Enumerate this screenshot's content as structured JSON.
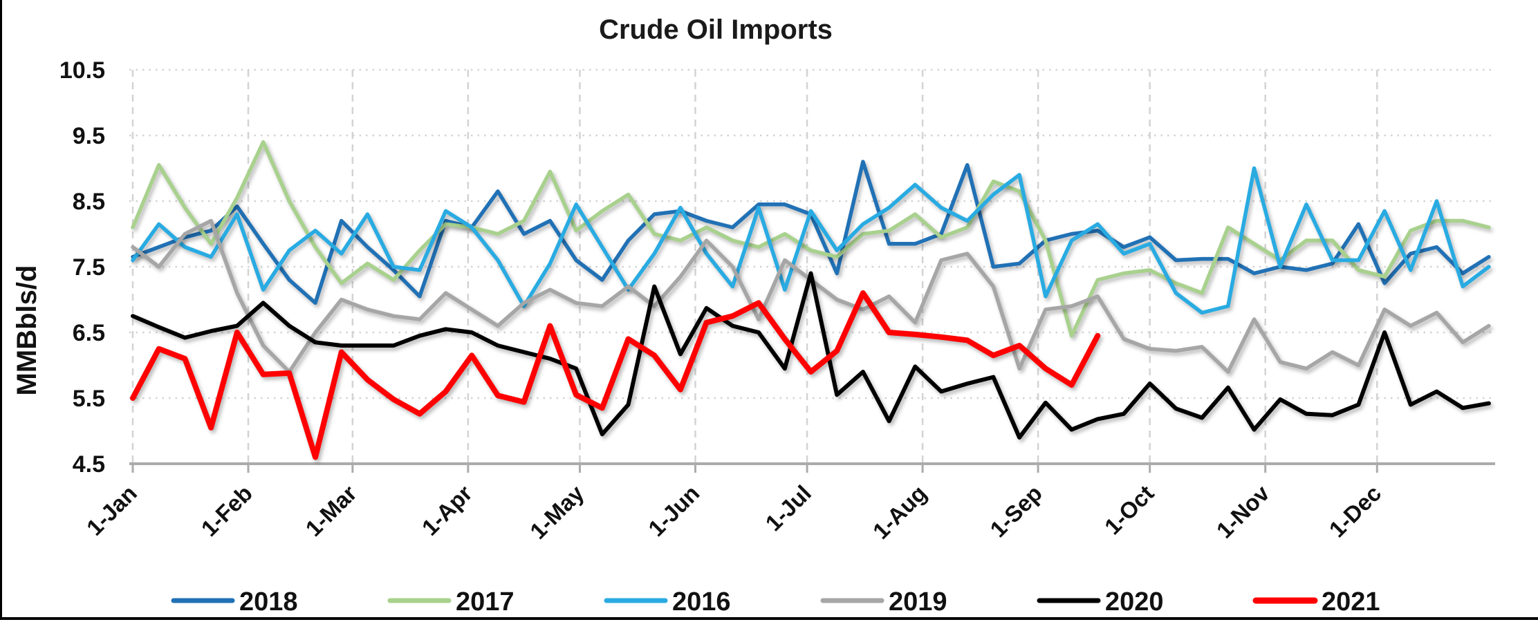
{
  "title": "Crude Oil Imports",
  "y_axis": {
    "label": "MMBbls/d",
    "min": 4.5,
    "max": 10.5,
    "tick_step": 1.0,
    "ticks": [
      "10.5",
      "9.5",
      "8.5",
      "7.5",
      "6.5",
      "5.5",
      "4.5"
    ]
  },
  "x_axis": {
    "tick_labels": [
      "1-Jan",
      "1-Feb",
      "1-Mar",
      "1-Apr",
      "1-May",
      "1-Jun",
      "1-Jul",
      "1-Aug",
      "1-Sep",
      "1-Oct",
      "1-Nov",
      "1-Dec"
    ]
  },
  "legend": [
    {
      "label": "2018",
      "color": "#2171B5"
    },
    {
      "label": "2017",
      "color": "#A9D18E"
    },
    {
      "label": "2016",
      "color": "#29ABE2"
    },
    {
      "label": "2019",
      "color": "#A6A6A6"
    },
    {
      "label": "2020",
      "color": "#000000"
    },
    {
      "label": "2021",
      "color": "#FF0000"
    }
  ],
  "colors": {
    "gridline": "#D3D3D3",
    "axis_line": "#ABABAB",
    "frame_border": "#000000",
    "background": "#FFFFFF"
  },
  "chart_data": {
    "type": "line",
    "x_unit": "weekly (one point per week starting 1-Jan)",
    "ylabel": "MMBbls/d",
    "ylim": [
      4.5,
      10.5
    ],
    "grid": "both, dashed",
    "legend_position": "bottom",
    "title": "Crude Oil Imports",
    "series": [
      {
        "name": "2018",
        "color": "#2171B5",
        "width": 5.5,
        "values": [
          7.65,
          7.8,
          7.95,
          8.05,
          8.42,
          7.85,
          7.3,
          6.95,
          8.2,
          7.8,
          7.45,
          7.05,
          8.2,
          8.1,
          8.65,
          8.0,
          8.2,
          7.6,
          7.3,
          7.9,
          8.3,
          8.35,
          8.2,
          8.1,
          8.45,
          8.45,
          8.3,
          7.4,
          9.1,
          7.85,
          7.85,
          8.0,
          9.05,
          7.5,
          7.55,
          7.9,
          8.0,
          8.05,
          7.8,
          7.95,
          7.6,
          7.62,
          7.62,
          7.4,
          7.5,
          7.45,
          7.55,
          8.15,
          7.25,
          7.7,
          7.8,
          7.4,
          7.65
        ]
      },
      {
        "name": "2017",
        "color": "#A9D18E",
        "width": 5.5,
        "values": [
          8.1,
          9.05,
          8.4,
          7.85,
          8.55,
          9.4,
          8.5,
          7.8,
          7.25,
          7.55,
          7.3,
          7.75,
          8.15,
          8.1,
          8.0,
          8.2,
          8.95,
          8.05,
          8.35,
          8.6,
          8.0,
          7.9,
          8.1,
          7.9,
          7.8,
          8.0,
          7.75,
          7.65,
          8.0,
          8.05,
          8.3,
          7.95,
          8.1,
          8.8,
          8.65,
          7.9,
          6.45,
          7.3,
          7.4,
          7.45,
          7.25,
          7.1,
          8.1,
          7.85,
          7.6,
          7.9,
          7.9,
          7.45,
          7.35,
          8.05,
          8.2,
          8.2,
          8.1
        ]
      },
      {
        "name": "2016",
        "color": "#29ABE2",
        "width": 5.5,
        "values": [
          7.6,
          8.15,
          7.8,
          7.65,
          8.3,
          7.15,
          7.75,
          8.05,
          7.7,
          8.3,
          7.5,
          7.45,
          8.35,
          8.1,
          7.6,
          6.9,
          7.55,
          8.45,
          7.8,
          7.15,
          7.7,
          8.4,
          7.7,
          7.2,
          8.4,
          7.15,
          8.35,
          7.75,
          8.15,
          8.4,
          8.75,
          8.4,
          8.2,
          8.6,
          8.9,
          7.05,
          7.9,
          8.15,
          7.7,
          7.85,
          7.1,
          6.8,
          6.9,
          9.0,
          7.5,
          8.45,
          7.6,
          7.6,
          8.35,
          7.45,
          8.5,
          7.2,
          7.5
        ]
      },
      {
        "name": "2019",
        "color": "#A6A6A6",
        "width": 5.5,
        "values": [
          7.8,
          7.5,
          8.0,
          8.2,
          7.1,
          6.3,
          5.9,
          6.5,
          7.0,
          6.85,
          6.75,
          6.7,
          7.1,
          6.85,
          6.6,
          6.95,
          7.15,
          6.95,
          6.9,
          7.2,
          6.9,
          7.35,
          7.9,
          7.5,
          6.7,
          7.6,
          7.3,
          7.0,
          6.85,
          7.05,
          6.65,
          7.6,
          7.7,
          7.2,
          5.95,
          6.85,
          6.9,
          7.05,
          6.4,
          6.25,
          6.22,
          6.28,
          5.9,
          6.7,
          6.05,
          5.95,
          6.2,
          6.0,
          6.85,
          6.6,
          6.8,
          6.35,
          6.6
        ]
      },
      {
        "name": "2020",
        "color": "#000000",
        "width": 6,
        "values": [
          6.75,
          6.58,
          6.42,
          6.52,
          6.6,
          6.95,
          6.6,
          6.35,
          6.3,
          6.3,
          6.3,
          6.45,
          6.55,
          6.5,
          6.3,
          6.2,
          6.1,
          5.95,
          4.95,
          5.4,
          7.2,
          6.17,
          6.87,
          6.6,
          6.5,
          5.95,
          7.4,
          5.55,
          5.9,
          5.15,
          5.98,
          5.6,
          5.72,
          5.82,
          4.9,
          5.43,
          5.02,
          5.18,
          5.26,
          5.72,
          5.34,
          5.2,
          5.66,
          5.02,
          5.48,
          5.26,
          5.24,
          5.4,
          6.5,
          5.4,
          5.6,
          5.35,
          5.42
        ]
      },
      {
        "name": "2021",
        "color": "#FF0000",
        "width": 8,
        "values": [
          5.5,
          6.25,
          6.1,
          5.05,
          6.5,
          5.86,
          5.88,
          4.6,
          6.2,
          5.78,
          5.48,
          5.26,
          5.6,
          6.15,
          5.54,
          5.44,
          6.6,
          5.55,
          5.35,
          6.4,
          6.15,
          5.63,
          6.65,
          6.75,
          6.95,
          6.4,
          5.9,
          6.22,
          7.1,
          6.5,
          6.47,
          6.43,
          6.38,
          6.15,
          6.3,
          5.95,
          5.7,
          6.45
        ]
      }
    ]
  }
}
